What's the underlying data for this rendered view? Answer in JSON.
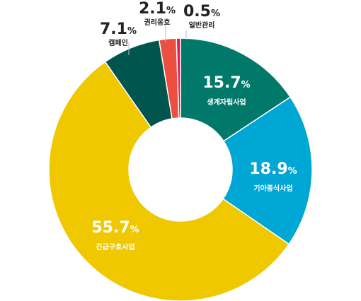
{
  "chart_data": {
    "type": "pie",
    "variant": "donut",
    "title": "",
    "unit": "%",
    "series": [
      {
        "values": [
          15.7,
          18.9,
          55.7,
          7.1,
          2.1,
          0.5
        ],
        "labels": [
          "생계자립사업",
          "기아종식사업",
          "긴급구호사업",
          "캠페인",
          "권리옹호",
          "일반관리"
        ],
        "value_labels": [
          "15.7",
          "18.9",
          "55.7",
          "7.1",
          "2.1",
          "0.5"
        ],
        "colors": [
          "#00796b",
          "#00a6d4",
          "#f0c800",
          "#00554f",
          "#ec4f3f",
          "#e8175d"
        ]
      }
    ],
    "label_placement": [
      "inside",
      "inside",
      "inside",
      "outside",
      "outside",
      "outside"
    ]
  }
}
